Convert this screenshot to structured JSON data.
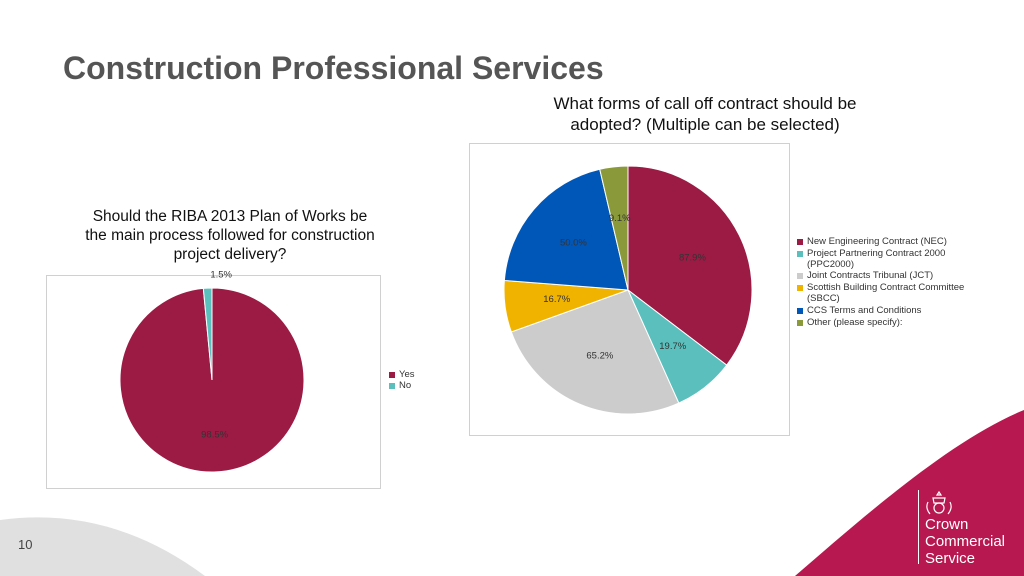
{
  "slide": {
    "title": "Construction Professional Services",
    "page_number": "10",
    "brand": {
      "line1": "Crown",
      "line2": "Commercial",
      "line3": "Service"
    },
    "colors": {
      "accent": "#b7184f",
      "grey_shape": "#e0e0e0"
    }
  },
  "chart_data": [
    {
      "type": "pie",
      "title_lines": [
        "Should the RIBA 2013 Plan of Works be",
        "the main process followed for construction",
        "project delivery?"
      ],
      "slices": [
        {
          "name": "Yes",
          "value": 98.5,
          "label": "98.5%",
          "color": "#9b1b45"
        },
        {
          "name": "No",
          "value": 1.5,
          "label": "1.5%",
          "color": "#5bc0bd"
        }
      ],
      "legend_position": "right"
    },
    {
      "type": "pie",
      "title_lines": [
        "What forms of call off contract should be",
        "adopted? (Multiple can be selected)"
      ],
      "slices": [
        {
          "name": "New Engineering Contract (NEC)",
          "value": 87.9,
          "label": "87.9%",
          "color": "#9b1b45"
        },
        {
          "name": "Project Partnering Contract 2000 (PPC2000)",
          "value": 19.7,
          "label": "19.7%",
          "color": "#5bc0bd"
        },
        {
          "name": "Joint Contracts Tribunal (JCT)",
          "value": 65.2,
          "label": "65.2%",
          "color": "#cccccc"
        },
        {
          "name": "Scottish Building Contract Committee (SBCC)",
          "value": 16.7,
          "label": "16.7%",
          "color": "#f0b300"
        },
        {
          "name": "CCS Terms and Conditions",
          "value": 50.0,
          "label": "50.0%",
          "color": "#0057b8"
        },
        {
          "name": "Other (please specify):",
          "value": 9.1,
          "label": "9.1%",
          "color": "#8a9a3b"
        }
      ],
      "legend_position": "right"
    }
  ]
}
